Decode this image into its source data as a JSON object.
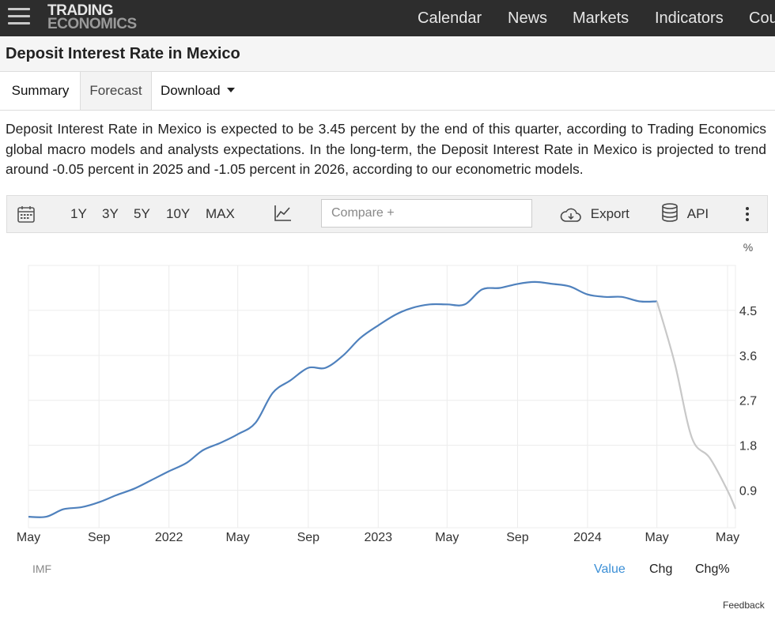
{
  "header": {
    "logo_line1": "TRADING",
    "logo_line2": "ECONOMICS",
    "nav": [
      "Calendar",
      "News",
      "Markets",
      "Indicators",
      "Cou"
    ]
  },
  "page_title": "Deposit Interest Rate in Mexico",
  "tabs": {
    "summary": "Summary",
    "forecast": "Forecast",
    "download": "Download"
  },
  "description": "Deposit Interest Rate in Mexico is expected to be 3.45 percent by the end of this quarter, according to Trading Economics global macro models and analysts expectations. In the long-term, the Deposit Interest Rate in Mexico is projected to trend around -0.05 percent in 2025 and -1.05 percent in 2026, according to our econometric models.",
  "toolbar": {
    "ranges": [
      "1Y",
      "3Y",
      "5Y",
      "10Y",
      "MAX"
    ],
    "compare_placeholder": "Compare +",
    "export": "Export",
    "api": "API",
    "icons": {
      "calendar": "calendar-icon",
      "chart_type": "line-chart-icon",
      "export": "cloud-download-icon",
      "api": "database-icon",
      "more": "more-vertical-icon"
    }
  },
  "footer": {
    "source": "IMF",
    "value": "Value",
    "chg": "Chg",
    "chg_pct": "Chg%",
    "feedback": "Feedback"
  },
  "colors": {
    "historical": "#4f81bd",
    "forecast": "#c8c8c8",
    "accent": "#3b8fd6",
    "header_bg": "#2d2d2d"
  },
  "chart_data": {
    "type": "line",
    "unit": "%",
    "x_ticks": [
      "May",
      "Sep",
      "2022",
      "May",
      "Sep",
      "2023",
      "May",
      "Sep",
      "2024",
      "May",
      "May"
    ],
    "y_ticks": [
      0.9,
      1.8,
      2.7,
      3.6,
      4.5
    ],
    "ylim": [
      0.15,
      5.4
    ],
    "grid": true,
    "series": [
      {
        "values": [
          {
            "x": "2021-05",
            "y": 0.37
          },
          {
            "x": "2021-06",
            "y": 0.37
          },
          {
            "x": "2021-07",
            "y": 0.52
          },
          {
            "x": "2021-08",
            "y": 0.56
          },
          {
            "x": "2021-09",
            "y": 0.66
          },
          {
            "x": "2021-10",
            "y": 0.8
          },
          {
            "x": "2021-11",
            "y": 0.93
          },
          {
            "x": "2021-12",
            "y": 1.1
          },
          {
            "x": "2022-01",
            "y": 1.28
          },
          {
            "x": "2022-02",
            "y": 1.45
          },
          {
            "x": "2022-03",
            "y": 1.7
          },
          {
            "x": "2022-04",
            "y": 1.85
          },
          {
            "x": "2022-05",
            "y": 2.02
          },
          {
            "x": "2022-06",
            "y": 2.25
          },
          {
            "x": "2022-07",
            "y": 2.85
          },
          {
            "x": "2022-08",
            "y": 3.1
          },
          {
            "x": "2022-09",
            "y": 3.35
          },
          {
            "x": "2022-10",
            "y": 3.35
          },
          {
            "x": "2022-11",
            "y": 3.6
          },
          {
            "x": "2022-12",
            "y": 3.95
          },
          {
            "x": "2023-01",
            "y": 4.2
          },
          {
            "x": "2023-02",
            "y": 4.42
          },
          {
            "x": "2023-03",
            "y": 4.55
          },
          {
            "x": "2023-04",
            "y": 4.62
          },
          {
            "x": "2023-05",
            "y": 4.62
          },
          {
            "x": "2023-06",
            "y": 4.62
          },
          {
            "x": "2023-07",
            "y": 4.92
          },
          {
            "x": "2023-08",
            "y": 4.95
          },
          {
            "x": "2023-09",
            "y": 5.03
          },
          {
            "x": "2023-10",
            "y": 5.07
          },
          {
            "x": "2023-11",
            "y": 5.03
          },
          {
            "x": "2023-12",
            "y": 4.98
          },
          {
            "x": "2024-01",
            "y": 4.82
          },
          {
            "x": "2024-02",
            "y": 4.77
          },
          {
            "x": "2024-03",
            "y": 4.77
          },
          {
            "x": "2024-04",
            "y": 4.68
          },
          {
            "x": "2024-05",
            "y": 4.68
          }
        ]
      },
      {
        "values": [
          {
            "x": "2024-05",
            "y": 4.68
          },
          {
            "x": "2024-06",
            "y": 3.45
          },
          {
            "x": "2024-07",
            "y": 1.95
          },
          {
            "x": "2024-08",
            "y": 1.55
          },
          {
            "x": "2024-09",
            "y": 0.9
          },
          {
            "x": "2024-09-15",
            "y": 0.53
          }
        ]
      }
    ]
  }
}
